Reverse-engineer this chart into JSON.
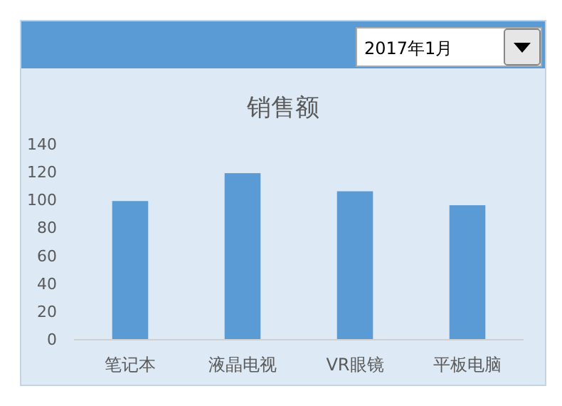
{
  "chart_data": {
    "type": "bar",
    "title": "销售额",
    "subtitle": "2017年1月",
    "categories": [
      "笔记本",
      "液晶电视",
      "VR眼镜",
      "平板电脑"
    ],
    "values": [
      99,
      119,
      106,
      96
    ],
    "color": "#5b9bd5",
    "ylim": [
      0,
      140
    ],
    "yticks": [
      0,
      20,
      40,
      60,
      80,
      100,
      120,
      140
    ]
  }
}
